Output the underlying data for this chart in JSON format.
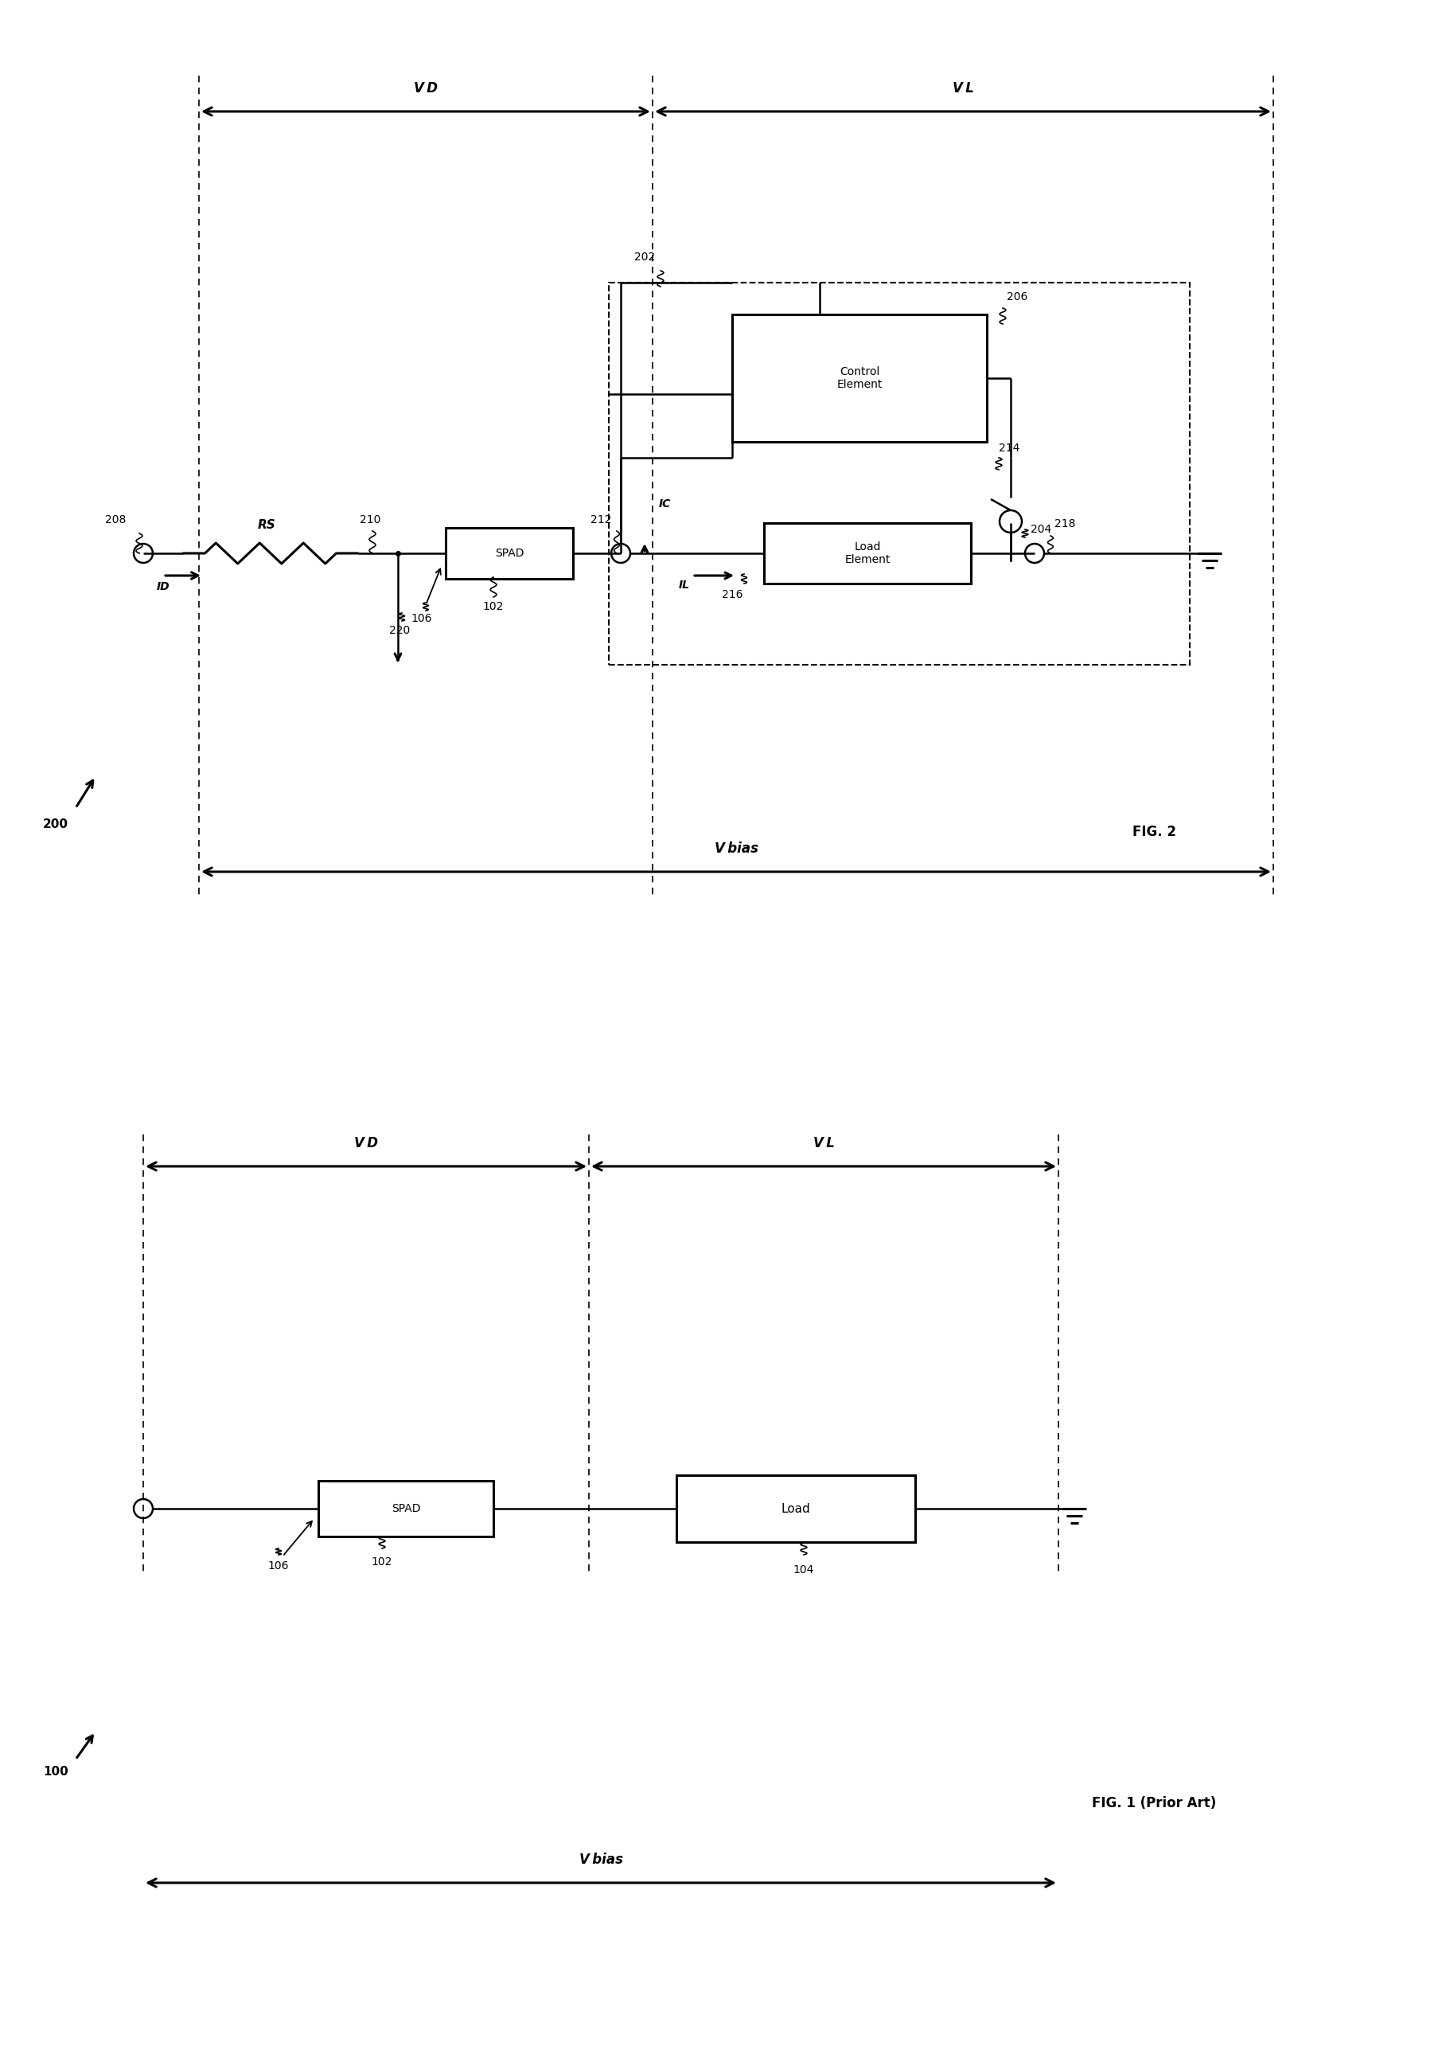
{
  "bg_color": "#ffffff",
  "line_color": "#000000",
  "fig_width": 18.17,
  "fig_height": 25.75,
  "fig2": {
    "label": "FIG. 2",
    "ref_label": "200",
    "vbias_label": "V bias",
    "vd_label": "V D",
    "vl_label": "V L",
    "dashed_box_label": "202",
    "control_element_label": "Control\nElement",
    "control_element_ref": "206",
    "load_element_label": "Load\nElement",
    "spad_label": "SPAD",
    "spad_ref": "102",
    "spad_arrow_ref": "106",
    "rs_label": "RS",
    "node208": "208",
    "node210": "210",
    "node212": "212",
    "node214": "214",
    "node216": "216",
    "node218": "218",
    "node220": "220",
    "node204": "204",
    "ic_label": "IC",
    "il_label": "IL",
    "id_label": "ID"
  },
  "fig1": {
    "label": "FIG. 1 (Prior Art)",
    "ref_label": "100",
    "vbias_label": "V bias",
    "vd_label": "V D",
    "vl_label": "V L",
    "spad_label": "SPAD",
    "spad_ref": "102",
    "spad_arrow_ref": "106",
    "load_label": "Load",
    "load_ref": "104"
  }
}
